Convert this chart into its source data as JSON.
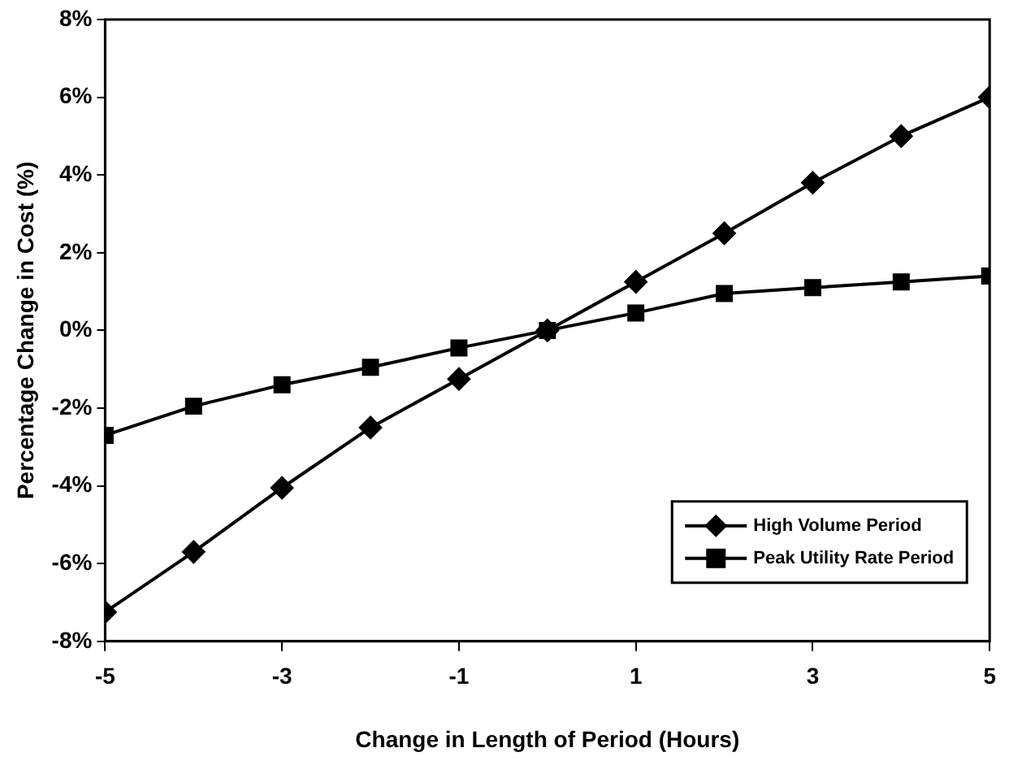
{
  "chart_data": {
    "type": "line",
    "xlabel": "Change in Length of Period (Hours)",
    "ylabel": "Percentage Change in Cost (%)",
    "x": [
      -5,
      -4,
      -3,
      -2,
      -1,
      0,
      1,
      2,
      3,
      4,
      5
    ],
    "series": [
      {
        "name": "High Volume Period",
        "color": "#000000",
        "marker": "diamond",
        "values": [
          -7.25,
          -5.7,
          -4.05,
          -2.5,
          -1.25,
          0,
          1.25,
          2.5,
          3.8,
          5.0,
          6.0
        ]
      },
      {
        "name": "Peak Utility Rate Period",
        "color": "#000000",
        "marker": "square",
        "values": [
          -2.7,
          -1.95,
          -1.4,
          -0.95,
          -0.45,
          0,
          0.45,
          0.95,
          1.1,
          1.25,
          1.4
        ]
      }
    ],
    "xlim": [
      -5,
      5
    ],
    "xticks": [
      -5,
      -3,
      -1,
      1,
      3,
      5
    ],
    "ylim": [
      -8,
      8
    ],
    "yticks": [
      {
        "value": -8,
        "label": "-8%"
      },
      {
        "value": -6,
        "label": "-6%"
      },
      {
        "value": -4,
        "label": "-4%"
      },
      {
        "value": -2,
        "label": "-2%"
      },
      {
        "value": 0,
        "label": "0%"
      },
      {
        "value": 2,
        "label": "2%"
      },
      {
        "value": 4,
        "label": "4%"
      },
      {
        "value": 6,
        "label": "6%"
      },
      {
        "value": 8,
        "label": "8%"
      }
    ],
    "grid": false,
    "legend": "bottom right",
    "line_style": "solid"
  }
}
